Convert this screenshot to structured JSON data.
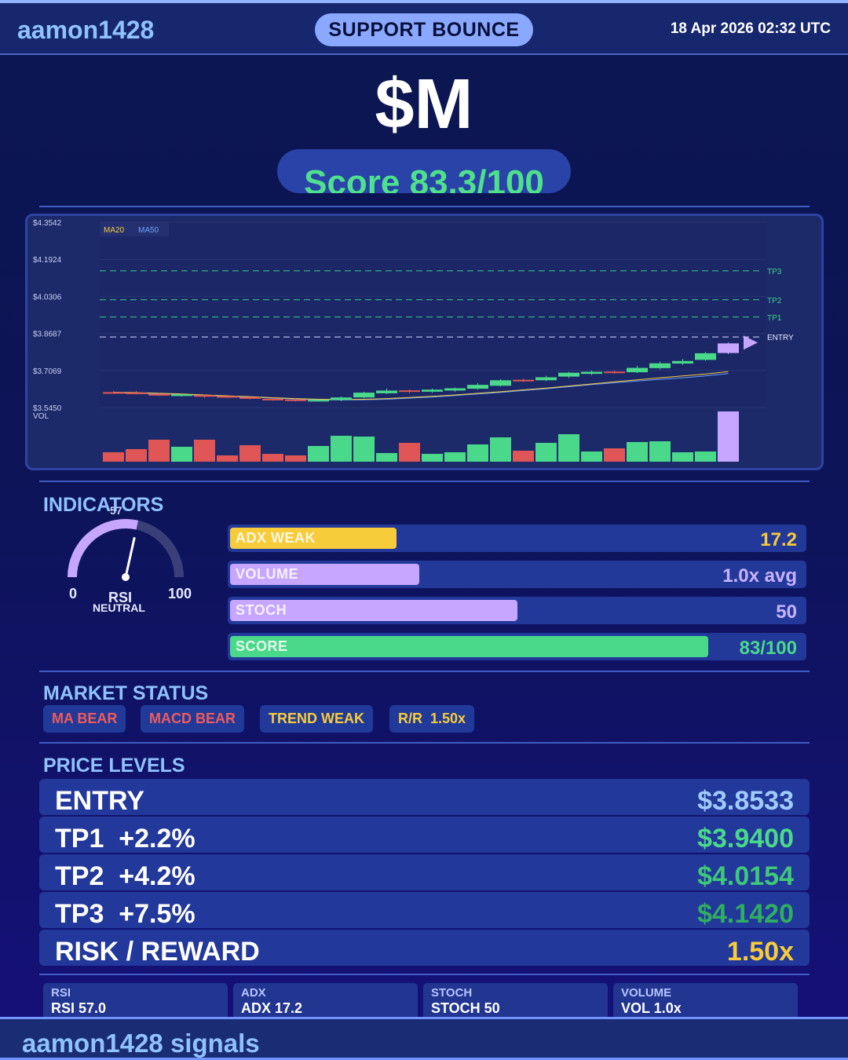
{
  "header": {
    "brand": "aamon1428",
    "signal": "SUPPORT BOUNCE",
    "datetime": "18 Apr 2026  02:32 UTC"
  },
  "ticker": "$M",
  "score_text": "Score 83.3/100",
  "chart_data": {
    "type": "candlestick",
    "y_ticks": [
      "$4.3542",
      "$4.1924",
      "$4.0306",
      "$3.8687",
      "$3.7069",
      "$3.5450"
    ],
    "ylim": [
      3.545,
      4.3542
    ],
    "volume_label": "VOL",
    "legend": [
      "MA20",
      "MA50"
    ],
    "levels": [
      {
        "name": "TP3",
        "value": 4.142
      },
      {
        "name": "TP2",
        "value": 4.0154
      },
      {
        "name": "TP1",
        "value": 3.94
      },
      {
        "name": "ENTRY",
        "value": 3.8533
      }
    ],
    "candles": [
      {
        "o": 3.612,
        "c": 3.609,
        "h": 3.617,
        "l": 3.604,
        "v": 12
      },
      {
        "o": 3.61,
        "c": 3.607,
        "h": 3.618,
        "l": 3.602,
        "v": 16
      },
      {
        "o": 3.604,
        "c": 3.6,
        "h": 3.61,
        "l": 3.595,
        "v": 28
      },
      {
        "o": 3.598,
        "c": 3.602,
        "h": 3.605,
        "l": 3.593,
        "v": 19
      },
      {
        "o": 3.599,
        "c": 3.594,
        "h": 3.603,
        "l": 3.587,
        "v": 28
      },
      {
        "o": 3.595,
        "c": 3.59,
        "h": 3.6,
        "l": 3.585,
        "v": 8
      },
      {
        "o": 3.59,
        "c": 3.584,
        "h": 3.596,
        "l": 3.58,
        "v": 21
      },
      {
        "o": 3.583,
        "c": 3.58,
        "h": 3.588,
        "l": 3.575,
        "v": 10
      },
      {
        "o": 3.58,
        "c": 3.576,
        "h": 3.584,
        "l": 3.571,
        "v": 8
      },
      {
        "o": 3.575,
        "c": 3.578,
        "h": 3.584,
        "l": 3.571,
        "v": 20
      },
      {
        "o": 3.578,
        "c": 3.589,
        "h": 3.594,
        "l": 3.573,
        "v": 33
      },
      {
        "o": 3.589,
        "c": 3.61,
        "h": 3.614,
        "l": 3.585,
        "v": 32
      },
      {
        "o": 3.607,
        "c": 3.619,
        "h": 3.628,
        "l": 3.604,
        "v": 11
      },
      {
        "o": 3.62,
        "c": 3.614,
        "h": 3.624,
        "l": 3.608,
        "v": 24
      },
      {
        "o": 3.614,
        "c": 3.623,
        "h": 3.628,
        "l": 3.609,
        "v": 10
      },
      {
        "o": 3.619,
        "c": 3.629,
        "h": 3.632,
        "l": 3.614,
        "v": 12
      },
      {
        "o": 3.627,
        "c": 3.644,
        "h": 3.652,
        "l": 3.623,
        "v": 22
      },
      {
        "o": 3.64,
        "c": 3.664,
        "h": 3.669,
        "l": 3.637,
        "v": 31
      },
      {
        "o": 3.666,
        "c": 3.661,
        "h": 3.671,
        "l": 3.656,
        "v": 14
      },
      {
        "o": 3.664,
        "c": 3.677,
        "h": 3.684,
        "l": 3.66,
        "v": 24
      },
      {
        "o": 3.68,
        "c": 3.697,
        "h": 3.701,
        "l": 3.674,
        "v": 35
      },
      {
        "o": 3.692,
        "c": 3.701,
        "h": 3.707,
        "l": 3.687,
        "v": 13
      },
      {
        "o": 3.702,
        "c": 3.7,
        "h": 3.707,
        "l": 3.693,
        "v": 17
      },
      {
        "o": 3.699,
        "c": 3.718,
        "h": 3.727,
        "l": 3.695,
        "v": 25
      },
      {
        "o": 3.717,
        "c": 3.738,
        "h": 3.745,
        "l": 3.711,
        "v": 26
      },
      {
        "o": 3.737,
        "c": 3.748,
        "h": 3.757,
        "l": 3.731,
        "v": 12
      },
      {
        "o": 3.753,
        "c": 3.782,
        "h": 3.788,
        "l": 3.749,
        "v": 13
      },
      {
        "o": 3.783,
        "c": 3.825,
        "h": 3.829,
        "l": 3.778,
        "v": 64
      }
    ],
    "ma20": [
      3.612,
      3.61,
      3.607,
      3.604,
      3.6,
      3.596,
      3.592,
      3.588,
      3.584,
      3.581,
      3.58,
      3.581,
      3.584,
      3.589,
      3.594,
      3.6,
      3.607,
      3.614,
      3.622,
      3.63,
      3.639,
      3.648,
      3.657,
      3.666,
      3.675,
      3.683,
      3.691,
      3.702
    ],
    "ma50": [
      3.61,
      3.608,
      3.605,
      3.602,
      3.598,
      3.594,
      3.59,
      3.586,
      3.582,
      3.579,
      3.578,
      3.579,
      3.581,
      3.586,
      3.591,
      3.597,
      3.604,
      3.611,
      3.619,
      3.627,
      3.636,
      3.645,
      3.653,
      3.661,
      3.668,
      3.675,
      3.683,
      3.693
    ]
  },
  "indicators": {
    "title": "INDICATORS",
    "rsi": {
      "value": 57,
      "value_label": "57",
      "min": "0",
      "max": "100",
      "label": "RSI",
      "state": "NEUTRAL"
    },
    "bars": [
      {
        "label": "ADX  WEAK",
        "value": "17.2",
        "fill": 0.29,
        "color": "#f7cc3a",
        "value_color": "#f7cc3a"
      },
      {
        "label": "VOLUME",
        "value": "1.0x avg",
        "fill": 0.33,
        "color": "#c7a6ff",
        "value_color": "#c9b2ff"
      },
      {
        "label": "STOCH",
        "value": "50",
        "fill": 0.5,
        "color": "#c7a6ff",
        "value_color": "#c9b2ff"
      },
      {
        "label": "SCORE",
        "value": "83/100",
        "fill": 0.833,
        "color": "#4ad88a",
        "value_color": "#4ad88a"
      }
    ]
  },
  "market_status": {
    "title": "MARKET STATUS",
    "badges": [
      {
        "text": "MA BEAR",
        "color": "#ef5a5a"
      },
      {
        "text": "MACD BEAR",
        "color": "#ef5a5a"
      },
      {
        "text": "TREND WEAK",
        "color": "#f7cc3a"
      },
      {
        "text": "R/R  1.50x",
        "color": "#f7cc3a"
      }
    ]
  },
  "price_levels": {
    "title": "PRICE LEVELS",
    "rows": [
      {
        "name": "ENTRY",
        "price": "$3.8533",
        "color": "#9fcbff"
      },
      {
        "name": "TP1  +2.2%",
        "price": "$3.9400",
        "color": "#4ad88a"
      },
      {
        "name": "TP2  +4.2%",
        "price": "$4.0154",
        "color": "#3fc878"
      },
      {
        "name": "TP3  +7.5%",
        "price": "$4.1420",
        "color": "#2fae62"
      },
      {
        "name": "RISK / REWARD",
        "price": "1.50x",
        "color": "#f7cc3a"
      }
    ]
  },
  "stats": [
    {
      "key": "RSI",
      "value": "RSI 57.0"
    },
    {
      "key": "ADX",
      "value": "ADX 17.2"
    },
    {
      "key": "STOCH",
      "value": "STOCH 50"
    },
    {
      "key": "VOLUME",
      "value": "VOL 1.0x"
    }
  ],
  "footer": "aamon1428 signals"
}
